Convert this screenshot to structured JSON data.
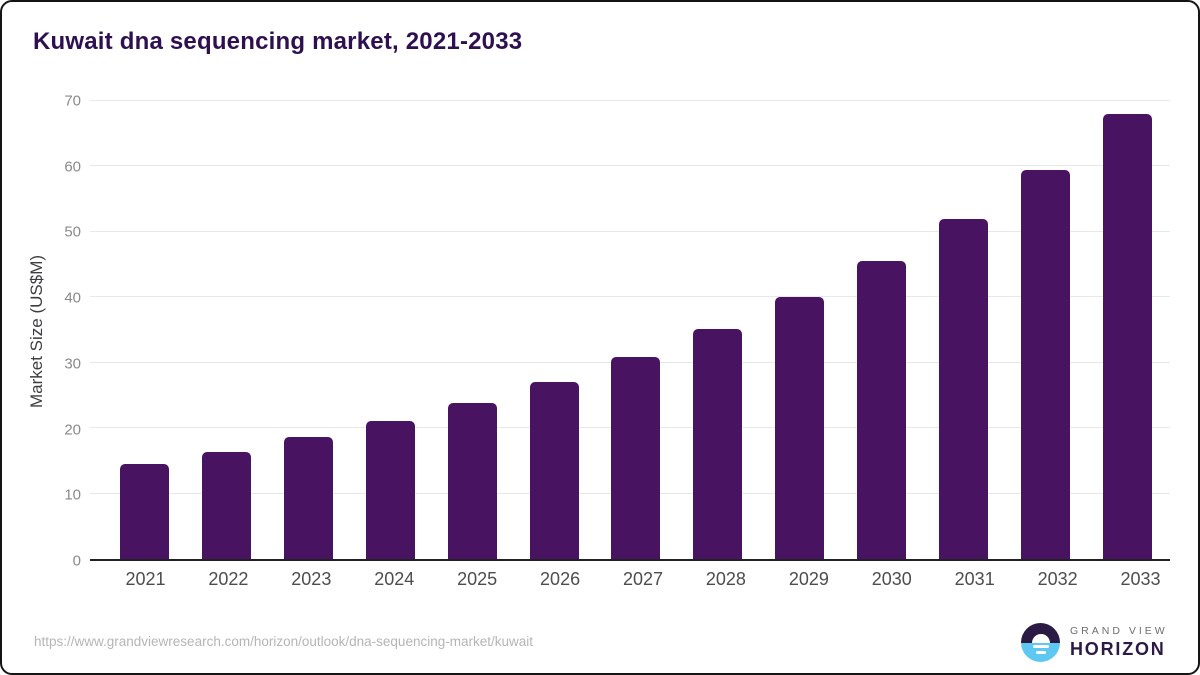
{
  "title": "Kuwait dna sequencing market, 2021-2033",
  "chart_data": {
    "type": "bar",
    "title": "Kuwait dna sequencing market, 2021-2033",
    "categories": [
      "2021",
      "2022",
      "2023",
      "2024",
      "2025",
      "2026",
      "2027",
      "2028",
      "2029",
      "2030",
      "2031",
      "2032",
      "2033"
    ],
    "values": [
      14.5,
      16.3,
      18.7,
      21.1,
      23.8,
      27.1,
      30.9,
      35.1,
      40.0,
      45.6,
      52.0,
      59.5,
      68.0
    ],
    "xlabel": "",
    "ylabel": "Market Size (US$M)",
    "ylim": [
      0,
      70
    ],
    "ytick_step": 10,
    "grid": true,
    "legend": "none",
    "bar_color": "#481361"
  },
  "footer": {
    "source_url": "https://www.grandviewresearch.com/horizon/outlook/dna-sequencing-market/kuwait",
    "brand": {
      "line1": "GRAND VIEW",
      "line2": "HORIZON",
      "logo_icon": "horizon-sun-circle-icon"
    }
  },
  "colors": {
    "title": "#2e1050",
    "bar": "#481361",
    "gridline": "#e8e8ea",
    "axis_line": "#222226",
    "y_tick_label": "#8a8a8a",
    "x_tick_label": "#4d4d4d",
    "source_url": "#b5b5b5",
    "logo_top": "#2a1a44",
    "logo_bottom": "#5ec8f2",
    "brand_name": "#2c1a45"
  }
}
